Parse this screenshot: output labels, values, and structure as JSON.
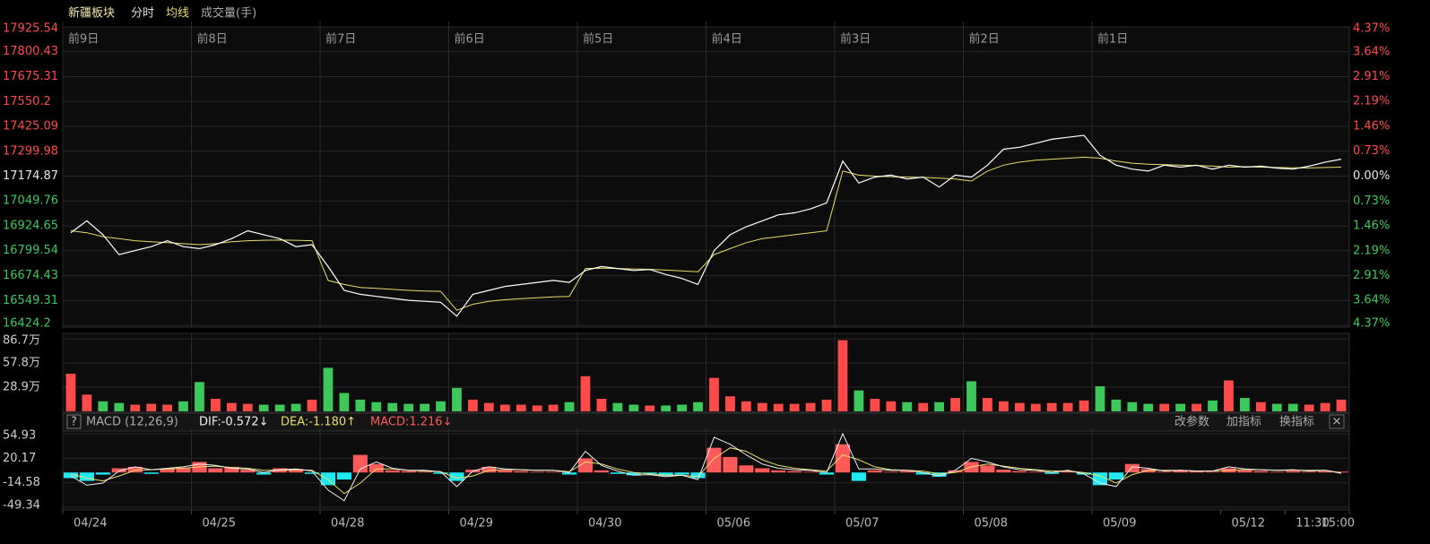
{
  "toolbar": {
    "title": "新疆板块"
  },
  "macd_header": {
    "help": "?",
    "name": "MACD (12,26,9)",
    "dif": "DIF:-0.572↓",
    "dea": "DEA:-1.180↑",
    "macd": "MACD:1.216↓",
    "buttons": [
      "改参数",
      "加指标",
      "换指标",
      "✕"
    ]
  },
  "chart_data": [
    {
      "type": "line",
      "xlim": [
        0,
        80
      ],
      "xticks": [
        {
          "value": 0,
          "label": "前9日"
        },
        {
          "value": 8,
          "label": "前8日"
        },
        {
          "value": 16,
          "label": "前7日"
        },
        {
          "value": 24,
          "label": "前6日"
        },
        {
          "value": 32,
          "label": "前5日"
        },
        {
          "value": 40,
          "label": "前4日"
        },
        {
          "value": 48,
          "label": "前3日"
        },
        {
          "value": 56,
          "label": "前2日"
        },
        {
          "value": 64,
          "label": "前1日"
        }
      ],
      "ylim": [
        16424.2,
        17925.54
      ],
      "yticks": [
        17925.54,
        17800.43,
        17675.31,
        17550.2,
        17425.09,
        17299.98,
        17174.87,
        17049.76,
        16924.65,
        16799.54,
        16674.43,
        16549.31,
        16424.2
      ],
      "y2lim": [
        -4.37,
        4.37
      ],
      "y2ticks": [
        {
          "value": 4.37,
          "label": "4.37%"
        },
        {
          "value": 3.64,
          "label": "3.64%"
        },
        {
          "value": 2.91,
          "label": "2.91%"
        },
        {
          "value": 2.19,
          "label": "2.19%"
        },
        {
          "value": 1.46,
          "label": "1.46%"
        },
        {
          "value": 0.73,
          "label": "0.73%"
        },
        {
          "value": 0,
          "label": "0.00%"
        },
        {
          "value": -0.73,
          "label": "0.73%"
        },
        {
          "value": -1.46,
          "label": "1.46%"
        },
        {
          "value": -2.19,
          "label": "2.19%"
        },
        {
          "value": -2.91,
          "label": "2.91%"
        },
        {
          "value": -3.64,
          "label": "3.64%"
        },
        {
          "value": -4.37,
          "label": "4.37%"
        }
      ],
      "up_color": "#ff4a4a",
      "down_color": "#3cc85a",
      "flat_color": "#e6e6e6",
      "grid": true,
      "series": [
        {
          "name": "分时",
          "color": "#ffffff",
          "values": [
            16890,
            16950,
            16880,
            16780,
            16800,
            16820,
            16850,
            16820,
            16810,
            16830,
            16860,
            16900,
            16880,
            16860,
            16820,
            16830,
            16720,
            16600,
            16580,
            16570,
            16560,
            16550,
            16545,
            16540,
            16470,
            16580,
            16600,
            16620,
            16630,
            16640,
            16650,
            16640,
            16700,
            16720,
            16710,
            16700,
            16705,
            16680,
            16660,
            16630,
            16800,
            16880,
            16920,
            16950,
            16980,
            16990,
            17010,
            17040,
            17250,
            17140,
            17170,
            17180,
            17160,
            17170,
            17120,
            17180,
            17170,
            17230,
            17310,
            17320,
            17340,
            17360,
            17370,
            17380,
            17280,
            17230,
            17210,
            17200,
            17230,
            17220,
            17230,
            17210,
            17230,
            17220,
            17225,
            17215,
            17210,
            17225,
            17245,
            17260
          ]
        },
        {
          "name": "均线",
          "color": "#e8de6a",
          "values": [
            16900,
            16890,
            16870,
            16860,
            16850,
            16845,
            16840,
            16835,
            16830,
            16835,
            16845,
            16850,
            16852,
            16853,
            16852,
            16850,
            16650,
            16630,
            16615,
            16610,
            16605,
            16600,
            16597,
            16595,
            16500,
            16530,
            16545,
            16553,
            16558,
            16563,
            16567,
            16570,
            16710,
            16712,
            16710,
            16708,
            16706,
            16702,
            16698,
            16694,
            16780,
            16810,
            16840,
            16860,
            16870,
            16880,
            16890,
            16900,
            17200,
            17180,
            17175,
            17172,
            17170,
            17168,
            17165,
            17160,
            17150,
            17200,
            17230,
            17245,
            17255,
            17260,
            17265,
            17270,
            17265,
            17250,
            17240,
            17235,
            17232,
            17230,
            17228,
            17226,
            17220,
            17222,
            17220,
            17218,
            17217,
            17216,
            17218,
            17220
          ]
        }
      ]
    },
    {
      "type": "bar",
      "xlim": [
        0,
        80
      ],
      "ylim": [
        0,
        86.7
      ],
      "yticks": [
        {
          "value": 86.7,
          "label": "86.7万"
        },
        {
          "value": 57.8,
          "label": "57.8万"
        },
        {
          "value": 28.9,
          "label": "28.9万"
        }
      ],
      "up_color": "#ff4a4a",
      "down_color": "#3cc85a",
      "series": [
        {
          "name": "成交量(手)",
          "values": [
            45,
            20,
            12,
            10,
            8,
            9,
            8,
            12,
            35,
            15,
            10,
            9,
            8,
            8,
            9,
            14,
            52,
            22,
            14,
            11,
            10,
            9,
            9,
            12,
            28,
            14,
            10,
            8,
            8,
            7,
            8,
            11,
            42,
            15,
            10,
            8,
            7,
            7,
            8,
            11,
            40,
            18,
            12,
            10,
            9,
            9,
            10,
            14,
            85,
            25,
            15,
            12,
            11,
            10,
            11,
            16,
            36,
            16,
            12,
            10,
            9,
            10,
            10,
            13,
            30,
            14,
            11,
            9,
            9,
            9,
            9,
            13,
            37,
            16,
            11,
            9,
            9,
            8,
            10,
            14
          ]
        }
      ]
    },
    {
      "type": "macd",
      "xlim": [
        0,
        80
      ],
      "xticks": [
        {
          "value": 0,
          "label": "04/24"
        },
        {
          "value": 8,
          "label": "04/25"
        },
        {
          "value": 16,
          "label": "04/28"
        },
        {
          "value": 24,
          "label": "04/29"
        },
        {
          "value": 32,
          "label": "04/30"
        },
        {
          "value": 40,
          "label": "05/06"
        },
        {
          "value": 48,
          "label": "05/07"
        },
        {
          "value": 56,
          "label": "05/08"
        },
        {
          "value": 64,
          "label": "05/09"
        },
        {
          "value": 72,
          "label": "05/12"
        },
        {
          "value": 76,
          "label": "11:30"
        },
        {
          "value": 80,
          "label": "15:00"
        }
      ],
      "ylim": [
        -49.34,
        54.93
      ],
      "yticks": [
        54.93,
        20.17,
        -14.58,
        -49.34
      ],
      "up_color": "#ff5a5a",
      "down_color": "#1fe8f0",
      "series": [
        {
          "color": "#ff5a5a",
          "values": [
            -8,
            -12,
            -3,
            6,
            8,
            -2,
            5,
            7,
            15,
            6,
            8,
            4,
            -3,
            6,
            5,
            -2,
            -18,
            -10,
            25,
            12,
            3,
            2,
            1,
            -2,
            -12,
            4,
            8,
            3,
            2,
            1,
            1,
            -3,
            20,
            3,
            -2,
            -4,
            -2,
            -5,
            -3,
            -8,
            35,
            22,
            10,
            6,
            3,
            2,
            1,
            -3,
            40,
            -12,
            3,
            1,
            2,
            -3,
            -6,
            3,
            15,
            10,
            4,
            2,
            1,
            -2,
            2,
            -3,
            -18,
            -10,
            12,
            5,
            1,
            3,
            2,
            1,
            6,
            3,
            2,
            1,
            2,
            1,
            2,
            1.216
          ]
        },
        {
          "color": "#f0f0f0",
          "values": [
            -5,
            -18,
            -15,
            2,
            8,
            4,
            6,
            8,
            12,
            10,
            6,
            5,
            0,
            4,
            5,
            2,
            -25,
            -40,
            5,
            15,
            6,
            3,
            3,
            1,
            -20,
            2,
            8,
            5,
            4,
            3,
            3,
            0,
            30,
            10,
            2,
            -4,
            -3,
            -6,
            -4,
            -10,
            50,
            40,
            25,
            12,
            6,
            4,
            3,
            0,
            55,
            5,
            5,
            3,
            3,
            0,
            -5,
            3,
            20,
            15,
            8,
            4,
            3,
            0,
            3,
            -2,
            -15,
            -20,
            8,
            6,
            2,
            3,
            2,
            2,
            8,
            5,
            4,
            3,
            4,
            2,
            3,
            -0.572
          ]
        },
        {
          "color": "#e8de6a",
          "values": [
            -2,
            -8,
            -12,
            -5,
            3,
            4,
            5,
            6,
            8,
            9,
            7,
            6,
            3,
            3,
            4,
            3,
            -10,
            -30,
            -15,
            5,
            5,
            3,
            2,
            1,
            -8,
            -5,
            3,
            4,
            4,
            3,
            3,
            1,
            15,
            12,
            5,
            0,
            -2,
            -4,
            -4,
            -6,
            20,
            35,
            30,
            18,
            10,
            6,
            4,
            2,
            25,
            18,
            8,
            4,
            3,
            2,
            -2,
            0,
            8,
            12,
            9,
            6,
            4,
            2,
            2,
            0,
            -5,
            -15,
            -3,
            3,
            3,
            3,
            2,
            2,
            3,
            4,
            4,
            3,
            3,
            3,
            3,
            -1.18
          ]
        }
      ]
    }
  ]
}
